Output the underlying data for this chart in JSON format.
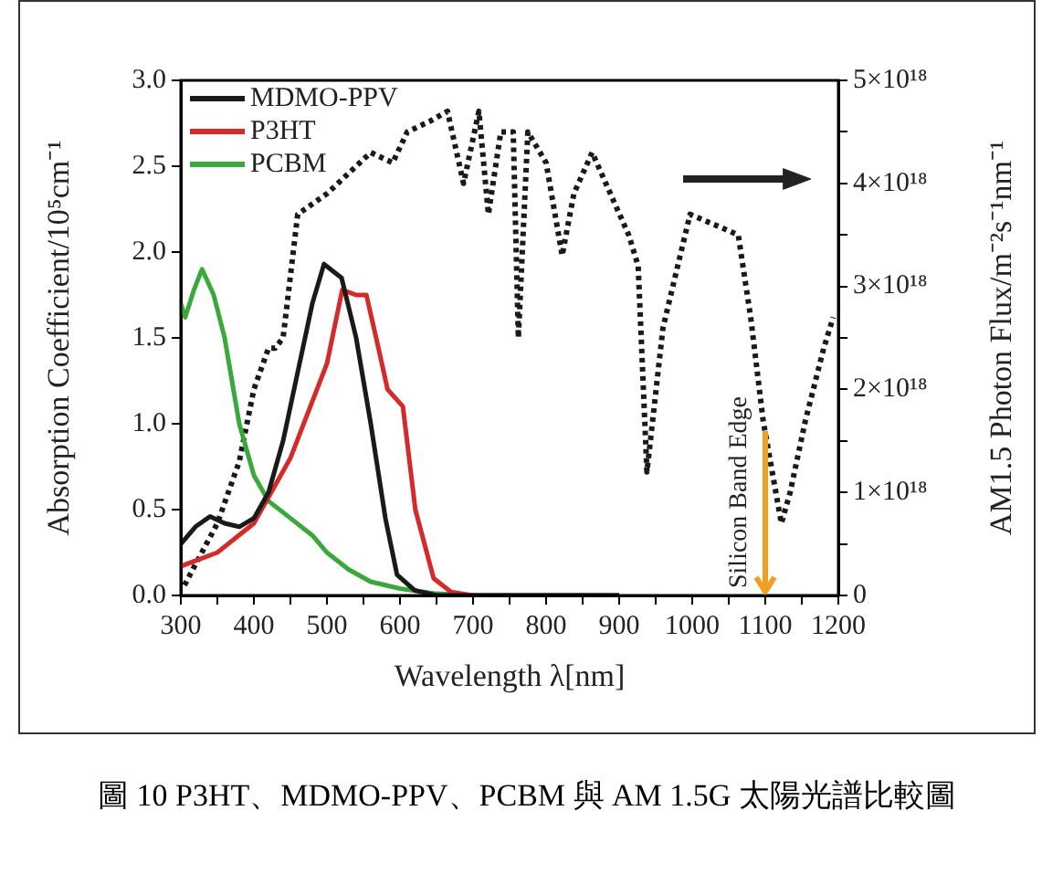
{
  "chart_data": {
    "type": "line",
    "xlabel": "Wavelength λ[nm]",
    "ylabel": "Absorption Coefficient/10⁵cm⁻¹",
    "y2label": "AM1.5 Photon Flux/m⁻²s⁻¹nm⁻¹",
    "xlim": [
      300,
      1200
    ],
    "xticks": [
      300,
      {
        "value": 350,
        "label": null
      },
      400,
      {
        "value": 450,
        "label": null
      },
      500,
      {
        "value": 550,
        "label": null
      },
      600,
      {
        "value": 650,
        "label": null
      },
      700,
      {
        "value": 750,
        "label": null
      },
      800,
      {
        "value": 850,
        "label": null
      },
      900,
      {
        "value": 950,
        "label": null
      },
      1000,
      {
        "value": 1050,
        "label": null
      },
      1100,
      {
        "value": 1150,
        "label": null
      },
      1200
    ],
    "ylim": [
      0,
      3
    ],
    "yticks": [
      {
        "value": 0,
        "label": "0.0"
      },
      {
        "value": 0.5,
        "label": "0.5"
      },
      {
        "value": 1,
        "label": "1.0"
      },
      {
        "value": 1.5,
        "label": "1.5"
      },
      {
        "value": 2,
        "label": "2.0"
      },
      {
        "value": 2.5,
        "label": "2.5"
      },
      {
        "value": 3,
        "label": "3.0"
      }
    ],
    "ref_lines": [
      {
        "axis": "x",
        "value": 1100,
        "label": "Silicon Band Edge",
        "color": "#f0a020"
      }
    ],
    "y2lim": [
      0,
      5e+18
    ],
    "y2ticks": [
      0,
      {
        "value": 5e+17,
        "label": null
      },
      {
        "value": 1e+18,
        "label": "1×10¹⁸"
      },
      {
        "value": 1.5e+18,
        "label": null
      },
      {
        "value": 2e+18,
        "label": "2×10¹⁸"
      },
      {
        "value": 2.5e+18,
        "label": null
      },
      {
        "value": 3e+18,
        "label": "3×10¹⁸"
      },
      {
        "value": 3.5e+18,
        "label": null
      },
      {
        "value": 4e+18,
        "label": "4×10¹⁸"
      },
      {
        "value": 4.5e+18,
        "label": null
      },
      {
        "value": 5e+18,
        "label": "5×10¹⁸"
      }
    ],
    "grid": false,
    "legend": "top left",
    "marker": "none",
    "series": [
      {
        "name": "MDMO-PPV",
        "color": "#1a1a1a",
        "x": [
          300,
          320,
          340,
          360,
          380,
          400,
          420,
          440,
          460,
          480,
          496,
          520,
          540,
          560,
          580,
          596,
          620,
          650,
          700,
          900
        ],
        "values": [
          0.3,
          0.4,
          0.46,
          0.42,
          0.4,
          0.45,
          0.6,
          0.9,
          1.3,
          1.7,
          1.93,
          1.85,
          1.5,
          1.0,
          0.45,
          0.12,
          0.03,
          0.0,
          0.0,
          0.0
        ]
      },
      {
        "name": "P3HT",
        "color": "#d42a2a",
        "x": [
          300,
          350,
          400,
          450,
          500,
          521,
          540,
          554,
          570,
          583,
          604,
          621,
          646,
          670,
          700,
          900
        ],
        "values": [
          0.17,
          0.25,
          0.42,
          0.8,
          1.35,
          1.78,
          1.75,
          1.75,
          1.45,
          1.2,
          1.1,
          0.5,
          0.1,
          0.02,
          0.0,
          0.0
        ]
      },
      {
        "name": "PCBM",
        "color": "#3aa83a",
        "x": [
          300,
          306,
          318,
          329,
          345,
          360,
          380,
          400,
          420,
          450,
          480,
          500,
          530,
          560,
          600,
          650,
          700,
          900
        ],
        "values": [
          1.7,
          1.62,
          1.78,
          1.9,
          1.75,
          1.5,
          1.0,
          0.7,
          0.55,
          0.45,
          0.35,
          0.25,
          0.15,
          0.08,
          0.04,
          0.01,
          0.0,
          0.0
        ]
      },
      {
        "color": "#1a1a1a",
        "axis": "y2",
        "line_style": "dotted",
        "x": [
          305,
          320,
          350,
          380,
          400,
          420,
          429,
          440,
          460,
          500,
          530,
          560,
          590,
          610,
          640,
          665,
          687,
          708,
          721,
          738,
          755,
          762,
          775,
          800,
          822,
          838,
          863,
          888,
          913,
          926,
          938,
          960,
          997,
          1030,
          1063,
          1080,
          1097,
          1122,
          1134,
          1155,
          1180,
          1193
        ],
        "values": [
          1e+17,
          3e+17,
          7e+17,
          1.3e+18,
          2e+18,
          2.4e+18,
          2.4e+18,
          2.5e+18,
          3.7e+18,
          3.9e+18,
          4.1e+18,
          4.3e+18,
          4.2e+18,
          4.5e+18,
          4.6e+18,
          4.7e+18,
          4e+18,
          4.7e+18,
          3.7e+18,
          4.5e+18,
          4.5e+18,
          2.5e+18,
          4.5e+18,
          4.2e+18,
          3.3e+18,
          3.9e+18,
          4.3e+18,
          3.9e+18,
          3.5e+18,
          3.2e+18,
          1.2e+18,
          2.6e+18,
          3.7e+18,
          3.6e+18,
          3.5e+18,
          2.7e+18,
          1.7e+18,
          7e+17,
          1e+18,
          1.7e+18,
          2.4e+18,
          2.7e+18
        ]
      }
    ],
    "annotations": [
      "圖 10 P3HT、MDMO-PPV、PCBM 與 AM 1.5G 太陽光譜比較圖"
    ]
  }
}
